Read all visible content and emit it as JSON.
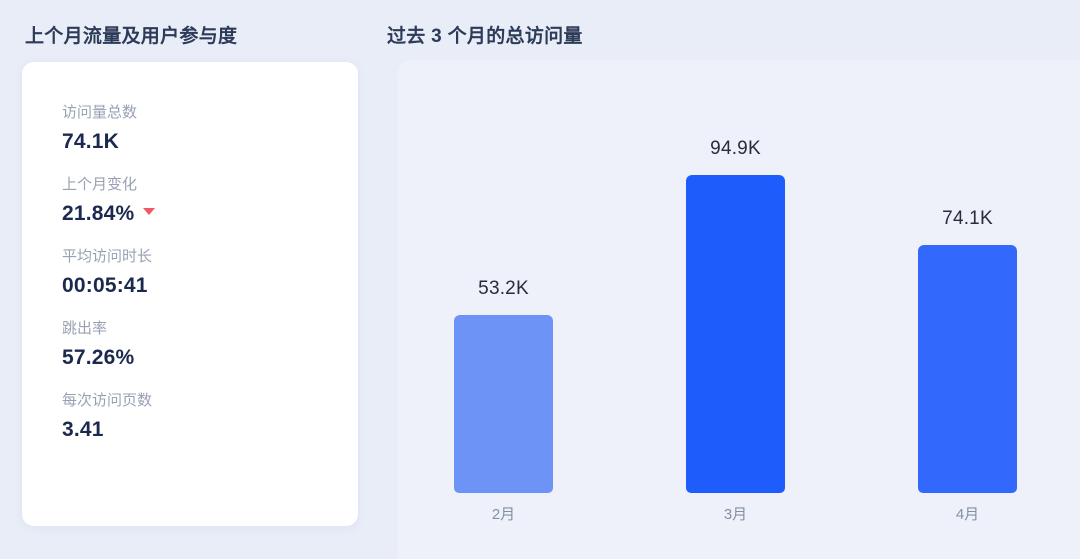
{
  "left_panel": {
    "title": "上个月流量及用户参与度",
    "stats": [
      {
        "label": "访问量总数",
        "value": "74.1K"
      },
      {
        "label": "上个月变化",
        "value": "21.84%",
        "trend": "down"
      },
      {
        "label": "平均访问时长",
        "value": "00:05:41"
      },
      {
        "label": "跳出率",
        "value": "57.26%"
      },
      {
        "label": "每次访问页数",
        "value": "3.41"
      }
    ]
  },
  "chart_panel": {
    "title": "过去 3 个月的总访问量"
  },
  "chart_data": {
    "type": "bar",
    "title": "过去 3 个月的总访问量",
    "categories": [
      "2月",
      "3月",
      "4月"
    ],
    "values": [
      53.2,
      94.9,
      74.1
    ],
    "value_labels": [
      "53.2K",
      "94.9K",
      "74.1K"
    ],
    "unit": "K",
    "xlabel": "",
    "ylabel": "",
    "ylim": [
      0,
      100
    ],
    "grid": false,
    "legend": false,
    "bar_colors": [
      "#6E93F6",
      "#1E5CFB",
      "#3268FC"
    ]
  },
  "colors": {
    "page_bg": "#E9EDF8",
    "chart_bg": "#EEF1FA",
    "card_bg": "#FFFFFF",
    "title_text": "#2C3B57",
    "stat_label_text": "#98A1B4",
    "stat_value_text": "#1B294E",
    "bar_value_text": "#272D3A",
    "month_label_text": "#8490A5",
    "trend_down": "#F25767"
  }
}
